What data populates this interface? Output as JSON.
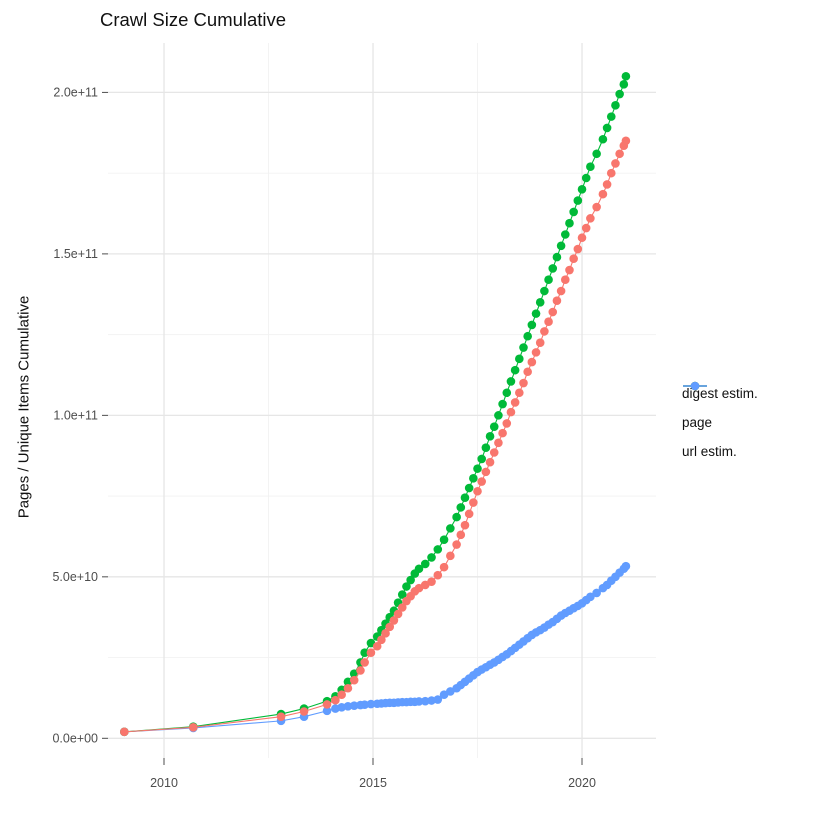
{
  "chart_data": {
    "type": "scatter",
    "title": "Crawl Size Cumulative",
    "xlabel": "",
    "ylabel": "Pages / Unique Items Cumulative",
    "legend_position": "right",
    "grid": true,
    "xlim": [
      2008.66,
      2021.77
    ],
    "ylim": [
      -6100000000.0,
      215300000000.0
    ],
    "x_ticks": [
      {
        "v": 2010,
        "label": "2010"
      },
      {
        "v": 2015,
        "label": "2015"
      },
      {
        "v": 2020,
        "label": "2020"
      }
    ],
    "x_minor_ticks": [
      2012.5,
      2017.5
    ],
    "y_ticks": [
      {
        "v": 0,
        "label": "0.0e+00"
      },
      {
        "v": 50000000000.0,
        "label": "5.0e+10"
      },
      {
        "v": 100000000000.0,
        "label": "1.0e+11"
      },
      {
        "v": 150000000000.0,
        "label": "1.5e+11"
      },
      {
        "v": 200000000000.0,
        "label": "2.0e+11"
      }
    ],
    "y_minor_ticks": [
      25000000000.0,
      75000000000.0,
      125000000000.0,
      175000000000.0
    ],
    "x": [
      2009.05,
      2010.7,
      2012.8,
      2013.35,
      2013.9,
      2014.1,
      2014.25,
      2014.4,
      2014.55,
      2014.7,
      2014.8,
      2014.95,
      2015.1,
      2015.2,
      2015.3,
      2015.4,
      2015.5,
      2015.6,
      2015.7,
      2015.8,
      2015.9,
      2016.0,
      2016.1,
      2016.25,
      2016.4,
      2016.55,
      2016.7,
      2016.85,
      2017.0,
      2017.1,
      2017.2,
      2017.3,
      2017.4,
      2017.5,
      2017.6,
      2017.7,
      2017.8,
      2017.9,
      2018.0,
      2018.1,
      2018.2,
      2018.3,
      2018.4,
      2018.5,
      2018.6,
      2018.7,
      2018.8,
      2018.9,
      2019.0,
      2019.1,
      2019.2,
      2019.3,
      2019.4,
      2019.5,
      2019.6,
      2019.7,
      2019.8,
      2019.9,
      2020.0,
      2020.1,
      2020.2,
      2020.35,
      2020.5,
      2020.6,
      2020.7,
      2020.8,
      2020.9,
      2021.0,
      2021.05
    ],
    "series": [
      {
        "name": "digest estim.",
        "color": "#F8766D",
        "values": [
          2000000000.0,
          3400000000.0,
          6700000000.0,
          8300000000.0,
          10500000000.0,
          11800000000.0,
          13500000000.0,
          15500000000.0,
          18000000000.0,
          21000000000.0,
          23500000000.0,
          26500000000.0,
          28500000000.0,
          30500000000.0,
          32500000000.0,
          34500000000.0,
          36500000000.0,
          38500000000.0,
          40500000000.0,
          42500000000.0,
          44000000000.0,
          45500000000.0,
          46500000000.0,
          47500000000.0,
          48500000000.0,
          50500000000.0,
          53000000000.0,
          56500000000.0,
          60000000000.0,
          63000000000.0,
          66000000000.0,
          69500000000.0,
          73000000000.0,
          76500000000.0,
          79500000000.0,
          82500000000.0,
          85500000000.0,
          88500000000.0,
          91500000000.0,
          94500000000.0,
          97500000000.0,
          101000000000.0,
          104000000000.0,
          107000000000.0,
          110000000000.0,
          113500000000.0,
          116500000000.0,
          119500000000.0,
          122500000000.0,
          126000000000.0,
          129000000000.0,
          132000000000.0,
          135500000000.0,
          138500000000.0,
          142000000000.0,
          145000000000.0,
          148500000000.0,
          151500000000.0,
          155000000000.0,
          158000000000.0,
          161000000000.0,
          164500000000.0,
          168500000000.0,
          171500000000.0,
          175000000000.0,
          178000000000.0,
          181000000000.0,
          183500000000.0,
          185000000000.0
        ]
      },
      {
        "name": "page",
        "color": "#00BA38",
        "values": [
          2000000000.0,
          3600000000.0,
          7500000000.0,
          9200000000.0,
          11500000000.0,
          13000000000.0,
          15000000000.0,
          17500000000.0,
          20000000000.0,
          23500000000.0,
          26500000000.0,
          29500000000.0,
          31500000000.0,
          33500000000.0,
          35500000000.0,
          37500000000.0,
          39500000000.0,
          42000000000.0,
          44500000000.0,
          47000000000.0,
          49000000000.0,
          51000000000.0,
          52500000000.0,
          54000000000.0,
          56000000000.0,
          58500000000.0,
          61500000000.0,
          65000000000.0,
          68500000000.0,
          71500000000.0,
          74500000000.0,
          77500000000.0,
          80500000000.0,
          83500000000.0,
          86500000000.0,
          90000000000.0,
          93500000000.0,
          96500000000.0,
          100000000000.0,
          103500000000.0,
          107000000000.0,
          110500000000.0,
          114000000000.0,
          117500000000.0,
          121000000000.0,
          124500000000.0,
          128000000000.0,
          131500000000.0,
          135000000000.0,
          138500000000.0,
          142000000000.0,
          145500000000.0,
          149000000000.0,
          152500000000.0,
          156000000000.0,
          159500000000.0,
          163000000000.0,
          166500000000.0,
          170000000000.0,
          173500000000.0,
          177000000000.0,
          181000000000.0,
          185500000000.0,
          189000000000.0,
          192500000000.0,
          196000000000.0,
          199500000000.0,
          202500000000.0,
          205000000000.0
        ]
      },
      {
        "name": "url estim.",
        "color": "#619CFF",
        "values": [
          2000000000.0,
          3200000000.0,
          5400000000.0,
          6700000000.0,
          8500000000.0,
          9200000000.0,
          9600000000.0,
          9900000000.0,
          10100000000.0,
          10300000000.0,
          10400000000.0,
          10600000000.0,
          10700000000.0,
          10800000000.0,
          10900000000.0,
          11000000000.0,
          11000000000.0,
          11100000000.0,
          11200000000.0,
          11200000000.0,
          11300000000.0,
          11300000000.0,
          11400000000.0,
          11500000000.0,
          11700000000.0,
          12000000000.0,
          13500000000.0,
          14500000000.0,
          15500000000.0,
          16500000000.0,
          17500000000.0,
          18500000000.0,
          19500000000.0,
          20500000000.0,
          21300000000.0,
          22000000000.0,
          22800000000.0,
          23500000000.0,
          24300000000.0,
          25200000000.0,
          26000000000.0,
          27000000000.0,
          28000000000.0,
          29000000000.0,
          30000000000.0,
          31000000000.0,
          32000000000.0,
          32800000000.0,
          33500000000.0,
          34300000000.0,
          35200000000.0,
          36000000000.0,
          37000000000.0,
          38000000000.0,
          38800000000.0,
          39500000000.0,
          40300000000.0,
          41000000000.0,
          41800000000.0,
          42800000000.0,
          43800000000.0,
          45000000000.0,
          46500000000.0,
          47500000000.0,
          48800000000.0,
          50000000000.0,
          51300000000.0,
          52500000000.0,
          53300000000.0
        ]
      }
    ],
    "style": {
      "grid_major_color": "#E6E6E6",
      "grid_minor_color": "#F2F2F2",
      "tick_label_color": "#4D4D4D",
      "tick_mark_color": "#4D4D4D"
    }
  }
}
